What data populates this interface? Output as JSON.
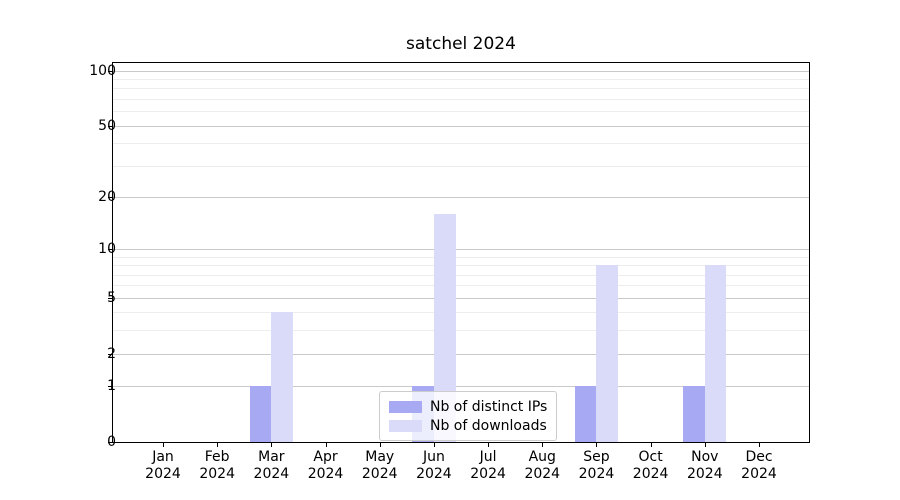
{
  "figure": {
    "background": "#ffffff"
  },
  "chart_data": {
    "type": "bar",
    "title": "satchel 2024",
    "categories": [
      "Jan",
      "Feb",
      "Mar",
      "Apr",
      "May",
      "Jun",
      "Jul",
      "Aug",
      "Sep",
      "Oct",
      "Nov",
      "Dec"
    ],
    "category_year": "2024",
    "series": [
      {
        "name": "Nb of distinct IPs",
        "color": "#a7aaf3",
        "values": [
          0,
          0,
          1,
          0,
          0,
          1,
          0,
          0,
          1,
          0,
          1,
          0
        ]
      },
      {
        "name": "Nb of downloads",
        "color": "#d9dbf9",
        "values": [
          0,
          0,
          4,
          0,
          0,
          16,
          0,
          0,
          8,
          0,
          8,
          0
        ]
      }
    ],
    "bar_width_fraction": 0.4,
    "xlabel": "",
    "ylabel": "",
    "y_axis": {
      "scale": "log1p",
      "ticks": [
        0,
        1,
        2,
        5,
        10,
        20,
        50,
        100
      ],
      "minor_ticks": [
        3,
        4,
        6,
        7,
        8,
        9,
        30,
        40,
        60,
        70,
        80,
        90
      ],
      "max": 110
    },
    "grid": {
      "major_color": "#c9c9c9",
      "minor_color": "#ededed"
    },
    "legend": {
      "position": "lower center"
    }
  }
}
